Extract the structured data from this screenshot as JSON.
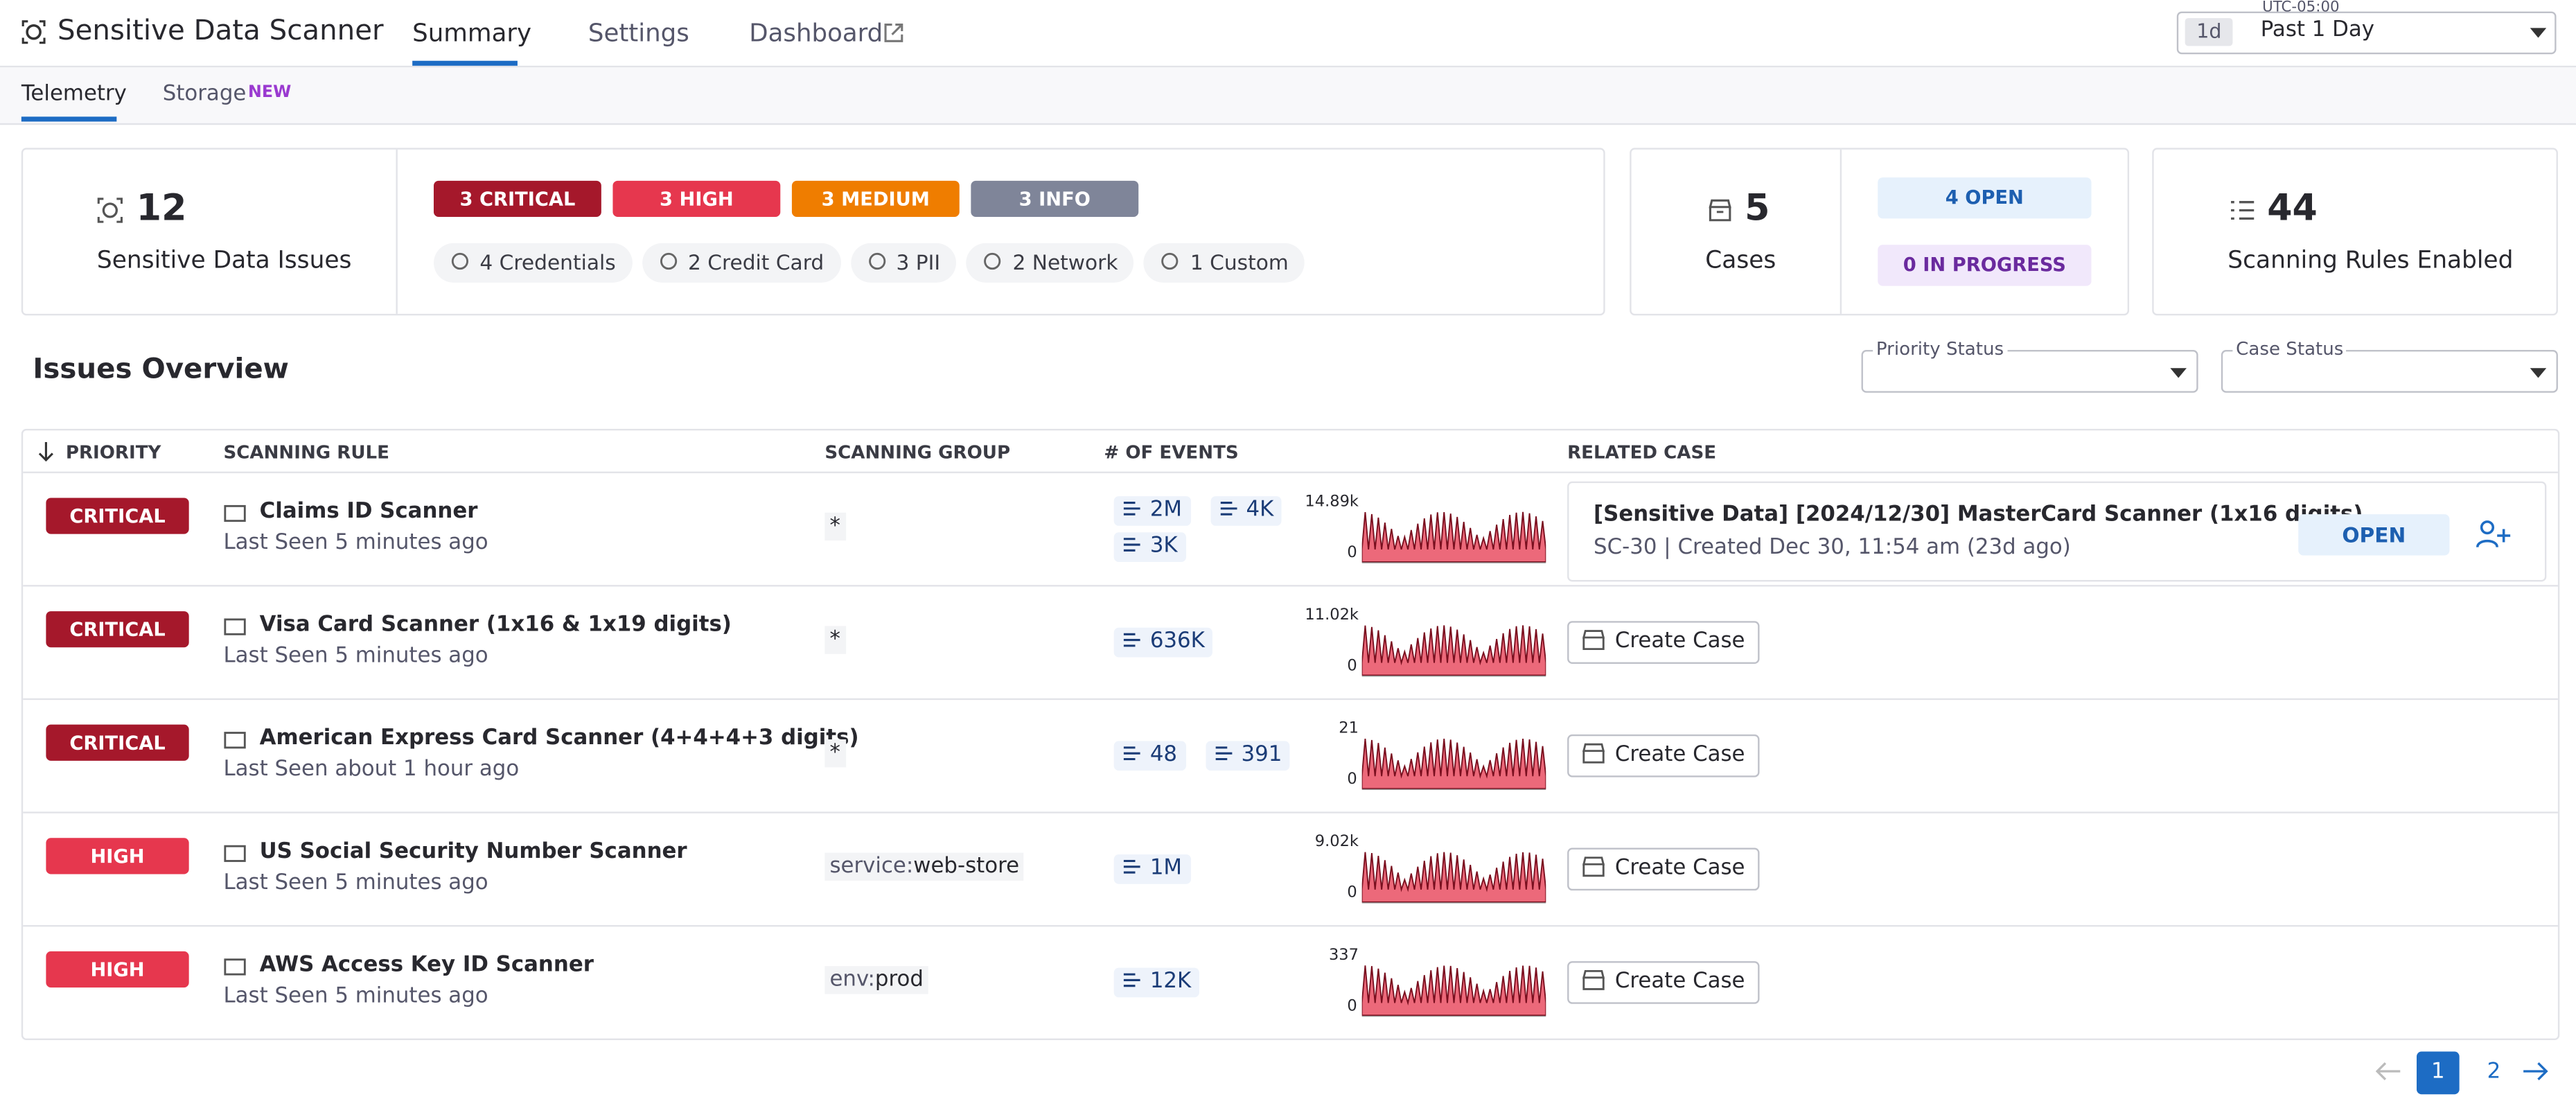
{
  "header": {
    "title": "Sensitive Data Scanner",
    "tabs": [
      "Summary",
      "Settings",
      "Dashboard"
    ],
    "timezone": "UTC-05:00",
    "time_badge": "1d",
    "time_range": "Past 1 Day"
  },
  "subtabs": [
    "Telemetry",
    "Storage"
  ],
  "subtab_badge": "NEW",
  "summary": {
    "issues": {
      "count": 12,
      "label": "Sensitive Data Issues"
    },
    "priorities": [
      "3 CRITICAL",
      "3 HIGH",
      "3 MEDIUM",
      "3 INFO"
    ],
    "types": [
      "4 Credentials",
      "2 Credit Card",
      "3 PII",
      "2 Network",
      "1 Custom"
    ],
    "cases": {
      "count": 5,
      "label": "Cases",
      "open": "4 OPEN",
      "in_progress": "0 IN PROGRESS"
    },
    "rules": {
      "count": 44,
      "label": "Scanning Rules Enabled"
    }
  },
  "issues": {
    "title": "Issues Overview",
    "filters": [
      "Priority Status",
      "Case Status"
    ],
    "columns": [
      "PRIORITY",
      "SCANNING RULE",
      "SCANNING GROUP",
      "# OF EVENTS",
      "RELATED CASE"
    ],
    "rows": [
      {
        "priority": "CRITICAL",
        "rule": "Claims ID Scanner",
        "last_seen": "Last Seen 5 minutes ago",
        "group": [
          "*"
        ],
        "events": [
          "2M",
          "4K",
          "3K"
        ],
        "chart_max": "14.89k",
        "chart_min": 0,
        "case": {
          "title": "[Sensitive Data] [2024/12/30] MasterCard Scanner (1x16 digits)",
          "detail": "SC-30 | Created Dec 30, 11:54 am (23d ago)",
          "status": "OPEN"
        }
      },
      {
        "priority": "CRITICAL",
        "rule": "Visa Card Scanner (1x16 & 1x19 digits)",
        "last_seen": "Last Seen 5 minutes ago",
        "group": [
          "*"
        ],
        "events": [
          "636K"
        ],
        "chart_max": "11.02k",
        "chart_min": 0,
        "action": "Create Case"
      },
      {
        "priority": "CRITICAL",
        "rule": "American Express Card Scanner (4+4+4+3 digits)",
        "last_seen": "Last Seen about 1 hour ago",
        "group": [
          "*"
        ],
        "events": [
          "48",
          "391"
        ],
        "chart_max": 21,
        "chart_min": 0,
        "action": "Create Case"
      },
      {
        "priority": "HIGH",
        "rule": "US Social Security Number Scanner",
        "last_seen": "Last Seen 5 minutes ago",
        "group": [
          "service:",
          "web-store"
        ],
        "events": [
          "1M"
        ],
        "chart_max": "9.02k",
        "chart_min": 0,
        "action": "Create Case"
      },
      {
        "priority": "HIGH",
        "rule": "AWS Access Key ID Scanner",
        "last_seen": "Last Seen 5 minutes ago",
        "group": [
          "env:",
          "prod"
        ],
        "events": [
          "12K"
        ],
        "chart_max": 337,
        "chart_min": 0,
        "action": "Create Case"
      }
    ]
  },
  "pagination": {
    "pages": [
      1,
      2
    ]
  }
}
